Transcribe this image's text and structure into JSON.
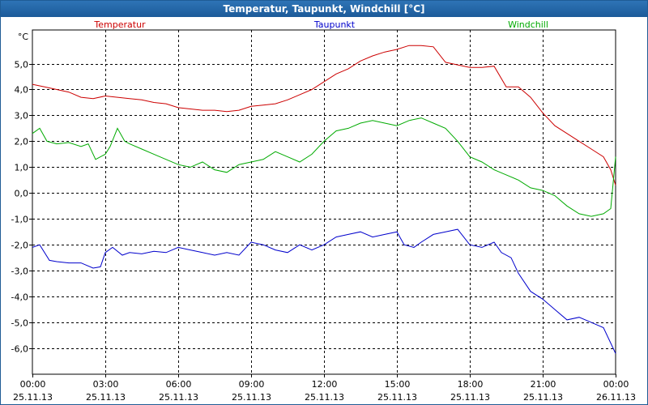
{
  "window": {
    "title": "Temperatur, Taupunkt, Windchill [°C]"
  },
  "chart_data": {
    "type": "line",
    "title": "Temperatur, Taupunkt, Windchill [°C]",
    "ylabel": "°C",
    "xlabel": "",
    "ylim": [
      -7,
      6.3
    ],
    "xlim": [
      0,
      24
    ],
    "grid": true,
    "legend_position": "top",
    "y_ticks": [
      5,
      4,
      3,
      2,
      1,
      0,
      -1,
      -2,
      -3,
      -4,
      -5,
      -6
    ],
    "y_tick_labels": [
      "5,0",
      "4,0",
      "3,0",
      "2,0",
      "1,0",
      "0,0",
      "-1,0",
      "-2,0",
      "-3,0",
      "-4,0",
      "-5,0",
      "-6,0"
    ],
    "x_ticks": [
      0,
      3,
      6,
      9,
      12,
      15,
      18,
      21,
      24
    ],
    "x_tick_labels": [
      {
        "time": "00:00",
        "date": "25.11.13"
      },
      {
        "time": "03:00",
        "date": "25.11.13"
      },
      {
        "time": "06:00",
        "date": "25.11.13"
      },
      {
        "time": "09:00",
        "date": "25.11.13"
      },
      {
        "time": "12:00",
        "date": "25.11.13"
      },
      {
        "time": "15:00",
        "date": "25.11.13"
      },
      {
        "time": "18:00",
        "date": "25.11.13"
      },
      {
        "time": "21:00",
        "date": "25.11.13"
      },
      {
        "time": "00:00",
        "date": "26.11.13"
      }
    ],
    "series": [
      {
        "name": "Temperatur",
        "color": "#cc0000",
        "x": [
          0,
          0.5,
          1,
          1.5,
          2,
          2.5,
          3,
          3.5,
          4,
          4.5,
          5,
          5.5,
          6,
          6.5,
          7,
          7.5,
          8,
          8.5,
          9,
          9.5,
          10,
          10.5,
          11,
          11.5,
          12,
          12.5,
          13,
          13.5,
          14,
          14.5,
          15,
          15.5,
          16,
          16.5,
          17,
          17.5,
          18,
          18.5,
          19,
          19.5,
          20,
          20.5,
          21,
          21.5,
          22,
          22.5,
          23,
          23.5,
          23.8,
          24
        ],
        "values": [
          4.2,
          4.1,
          4.0,
          3.9,
          3.7,
          3.65,
          3.75,
          3.7,
          3.65,
          3.6,
          3.5,
          3.45,
          3.3,
          3.25,
          3.2,
          3.2,
          3.15,
          3.2,
          3.35,
          3.4,
          3.45,
          3.6,
          3.8,
          4.0,
          4.3,
          4.6,
          4.8,
          5.1,
          5.3,
          5.45,
          5.55,
          5.7,
          5.7,
          5.65,
          5.05,
          4.95,
          4.85,
          4.85,
          4.9,
          4.1,
          4.1,
          3.7,
          3.1,
          2.6,
          2.3,
          2.0,
          1.7,
          1.4,
          0.9,
          0.3
        ]
      },
      {
        "name": "Taupunkt",
        "color": "#0000cc",
        "x": [
          0,
          0.3,
          0.7,
          1,
          1.5,
          2,
          2.5,
          2.8,
          3,
          3.3,
          3.7,
          4,
          4.5,
          5,
          5.5,
          6,
          6.5,
          7,
          7.5,
          8,
          8.5,
          9,
          9.5,
          10,
          10.5,
          11,
          11.5,
          12,
          12.5,
          13,
          13.5,
          14,
          14.5,
          15,
          15.3,
          15.7,
          16,
          16.5,
          17,
          17.5,
          18,
          18.5,
          19,
          19.3,
          19.7,
          20,
          20.5,
          21,
          21.5,
          22,
          22.5,
          23,
          23.5,
          24
        ],
        "values": [
          -2.1,
          -2.0,
          -2.6,
          -2.65,
          -2.7,
          -2.7,
          -2.9,
          -2.85,
          -2.3,
          -2.1,
          -2.4,
          -2.3,
          -2.35,
          -2.25,
          -2.3,
          -2.1,
          -2.2,
          -2.3,
          -2.4,
          -2.3,
          -2.4,
          -1.9,
          -2.0,
          -2.2,
          -2.3,
          -2.0,
          -2.2,
          -2.0,
          -1.7,
          -1.6,
          -1.5,
          -1.7,
          -1.6,
          -1.5,
          -2.0,
          -2.1,
          -1.9,
          -1.6,
          -1.5,
          -1.4,
          -2.0,
          -2.1,
          -1.9,
          -2.3,
          -2.5,
          -3.1,
          -3.8,
          -4.1,
          -4.5,
          -4.9,
          -4.8,
          -5.0,
          -5.2,
          -6.2
        ]
      },
      {
        "name": "Windchill",
        "color": "#00aa00",
        "x": [
          0,
          0.3,
          0.6,
          1,
          1.5,
          2,
          2.3,
          2.6,
          3,
          3.2,
          3.5,
          3.8,
          4,
          4.5,
          5,
          5.5,
          6,
          6.5,
          7,
          7.5,
          8,
          8.5,
          9,
          9.5,
          10,
          10.5,
          11,
          11.5,
          12,
          12.5,
          13,
          13.5,
          14,
          14.5,
          15,
          15.5,
          16,
          16.5,
          17,
          17.5,
          18,
          18.5,
          19,
          19.5,
          20,
          20.5,
          21,
          21.5,
          22,
          22.5,
          23,
          23.5,
          23.8,
          24
        ],
        "values": [
          2.3,
          2.5,
          2.0,
          1.9,
          1.95,
          1.8,
          1.9,
          1.3,
          1.5,
          1.8,
          2.5,
          2.0,
          1.9,
          1.7,
          1.5,
          1.3,
          1.1,
          1.0,
          1.2,
          0.9,
          0.8,
          1.1,
          1.2,
          1.3,
          1.6,
          1.4,
          1.2,
          1.5,
          2.0,
          2.4,
          2.5,
          2.7,
          2.8,
          2.7,
          2.6,
          2.8,
          2.9,
          2.7,
          2.5,
          2.0,
          1.4,
          1.2,
          0.9,
          0.7,
          0.5,
          0.2,
          0.1,
          -0.1,
          -0.5,
          -0.8,
          -0.9,
          -0.8,
          -0.6,
          1.4
        ]
      }
    ]
  }
}
